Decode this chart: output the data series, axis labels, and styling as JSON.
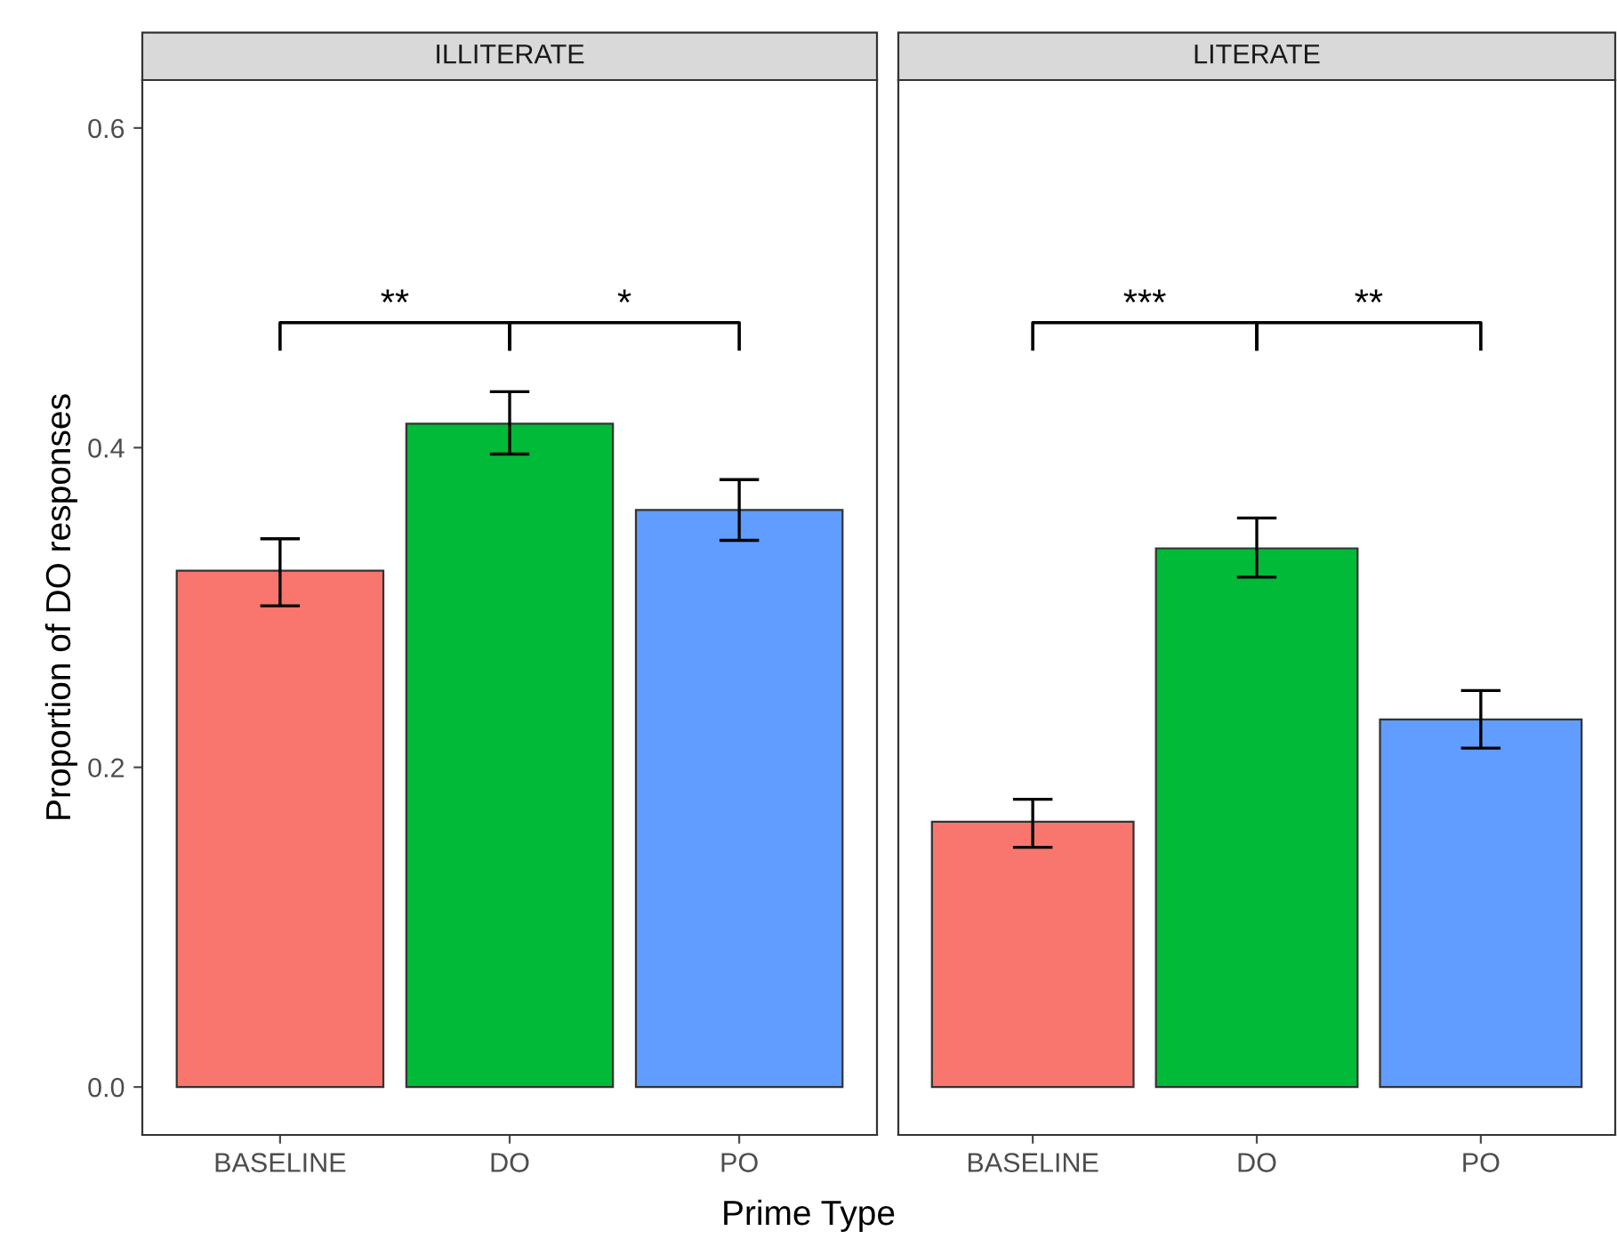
{
  "chart_data": [
    {
      "type": "bar",
      "title": "ILLITERATE",
      "xlabel": "Prime Type",
      "ylabel": "Proportion of DO responses",
      "categories": [
        "BASELINE",
        "DO",
        "PO"
      ],
      "values": [
        0.323,
        0.415,
        0.361
      ],
      "colors": [
        "#f8766d",
        "#00ba38",
        "#619cff"
      ],
      "errors": [
        [
          0.301,
          0.343
        ],
        [
          0.396,
          0.435
        ],
        [
          0.342,
          0.38
        ]
      ],
      "ylim": [
        -0.03,
        0.63
      ],
      "yticks": [
        {
          "value": 0,
          "label": "0.0"
        },
        {
          "value": 0.2,
          "label": "0.2"
        },
        {
          "value": 0.4,
          "label": "0.4"
        },
        {
          "value": 0.6,
          "label": "0.6"
        }
      ],
      "annotations": [
        "**",
        "*"
      ],
      "grid": false,
      "legend": false
    },
    {
      "type": "bar",
      "title": "LITERATE",
      "categories": [
        "BASELINE",
        "DO",
        "PO"
      ],
      "values": [
        0.166,
        0.337,
        0.23
      ],
      "colors": [
        "#f8766d",
        "#00ba38",
        "#619cff"
      ],
      "errors": [
        [
          0.15,
          0.18
        ],
        [
          0.319,
          0.356
        ],
        [
          0.212,
          0.248
        ]
      ],
      "ylim": [
        -0.03,
        0.63
      ],
      "annotations": [
        "***",
        "**"
      ],
      "grid": false,
      "legend": false,
      "tick_labels": "x"
    }
  ]
}
